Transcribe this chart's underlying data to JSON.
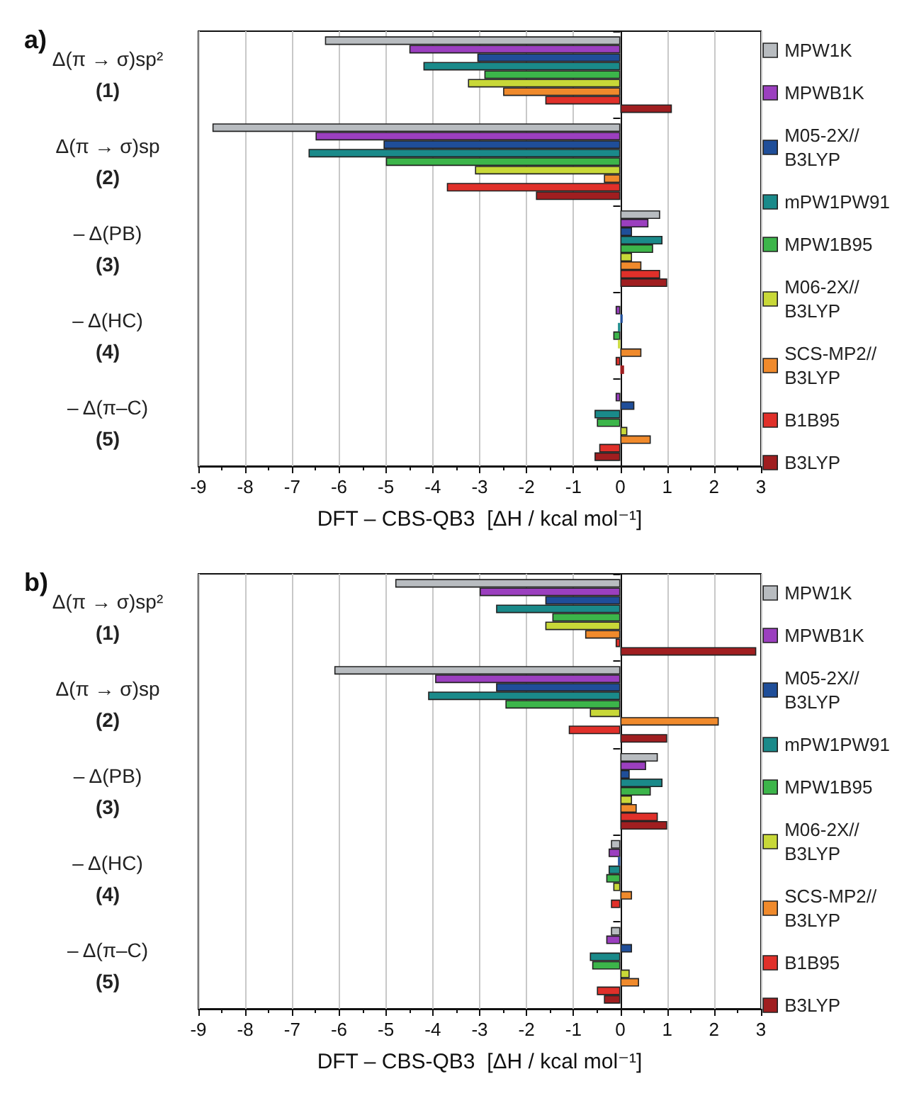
{
  "chart_data": [
    {
      "type": "bar",
      "orientation": "horizontal",
      "title": "a)",
      "xlabel": "DFT – CBS-QB3  [ΔH / kcal mol⁻¹]",
      "categories": [
        "Δ(π → σ)sp²\n(1)",
        "Δ(π → σ)sp\n(2)",
        "– Δ(PB)\n(3)",
        "– Δ(HC)\n(4)",
        "– Δ(π–C)\n(5)"
      ],
      "xlim": [
        -9,
        3
      ],
      "xticks": [
        -9,
        -8,
        -7,
        -6,
        -5,
        -4,
        -3,
        -2,
        -1,
        0,
        1,
        2,
        3
      ],
      "grid": "x",
      "legend": "right",
      "series": [
        {
          "name": "MPW1K",
          "color": "#b8bcc0",
          "values": [
            -6.3,
            -8.7,
            0.85,
            null,
            null
          ]
        },
        {
          "name": "MPWB1K",
          "color": "#9b3fbf",
          "values": [
            -4.5,
            -6.5,
            0.6,
            -0.1,
            -0.1
          ]
        },
        {
          "name": "M05-2X//\nB3LYP",
          "color": "#1f4e99",
          "values": [
            -3.05,
            -5.05,
            0.25,
            0.05,
            0.3
          ]
        },
        {
          "name": "mPW1PW91",
          "color": "#1a8a8a",
          "values": [
            -4.2,
            -6.65,
            0.9,
            -0.05,
            -0.55
          ]
        },
        {
          "name": "MPW1B95",
          "color": "#3cb54a",
          "values": [
            -2.9,
            -5.0,
            0.7,
            -0.15,
            -0.5
          ]
        },
        {
          "name": "M06-2X//\nB3LYP",
          "color": "#c8d838",
          "values": [
            -3.25,
            -3.1,
            0.25,
            -0.05,
            0.15
          ]
        },
        {
          "name": "SCS-MP2//\nB3LYP",
          "color": "#f08a2c",
          "values": [
            -2.5,
            -0.35,
            0.45,
            0.45,
            0.65
          ]
        },
        {
          "name": "B1B95",
          "color": "#e0302a",
          "values": [
            -1.6,
            -3.7,
            0.85,
            -0.1,
            -0.45
          ]
        },
        {
          "name": "B3LYP",
          "color": "#a01e20",
          "values": [
            1.1,
            -1.8,
            1.0,
            0.08,
            -0.55
          ]
        }
      ]
    },
    {
      "type": "bar",
      "orientation": "horizontal",
      "title": "b)",
      "xlabel": "DFT – CBS-QB3  [ΔH / kcal mol⁻¹]",
      "categories": [
        "Δ(π → σ)sp²\n(1)",
        "Δ(π → σ)sp\n(2)",
        "– Δ(PB)\n(3)",
        "– Δ(HC)\n(4)",
        "– Δ(π–C)\n(5)"
      ],
      "xlim": [
        -9,
        3
      ],
      "xticks": [
        -9,
        -8,
        -7,
        -6,
        -5,
        -4,
        -3,
        -2,
        -1,
        0,
        1,
        2,
        3
      ],
      "grid": "x",
      "legend": "right",
      "series": [
        {
          "name": "MPW1K",
          "color": "#b8bcc0",
          "values": [
            -4.8,
            -6.1,
            0.8,
            -0.2,
            -0.2
          ]
        },
        {
          "name": "MPWB1K",
          "color": "#9b3fbf",
          "values": [
            -3.0,
            -3.95,
            0.55,
            -0.25,
            -0.3
          ]
        },
        {
          "name": "M05-2X//\nB3LYP",
          "color": "#1f4e99",
          "values": [
            -1.6,
            -2.65,
            0.2,
            -0.05,
            0.25
          ]
        },
        {
          "name": "mPW1PW91",
          "color": "#1a8a8a",
          "values": [
            -2.65,
            -4.1,
            0.9,
            -0.25,
            -0.65
          ]
        },
        {
          "name": "MPW1B95",
          "color": "#3cb54a",
          "values": [
            -1.45,
            -2.45,
            0.65,
            -0.3,
            -0.6
          ]
        },
        {
          "name": "M06-2X//\nB3LYP",
          "color": "#c8d838",
          "values": [
            -1.6,
            -0.65,
            0.25,
            -0.15,
            0.2
          ]
        },
        {
          "name": "SCS-MP2//\nB3LYP",
          "color": "#f08a2c",
          "values": [
            -0.75,
            2.1,
            0.35,
            0.25,
            0.4
          ]
        },
        {
          "name": "B1B95",
          "color": "#e0302a",
          "values": [
            -0.1,
            -1.1,
            0.8,
            -0.2,
            -0.5
          ]
        },
        {
          "name": "B3LYP",
          "color": "#a01e20",
          "values": [
            2.9,
            1.0,
            1.0,
            null,
            -0.35
          ]
        }
      ]
    }
  ]
}
